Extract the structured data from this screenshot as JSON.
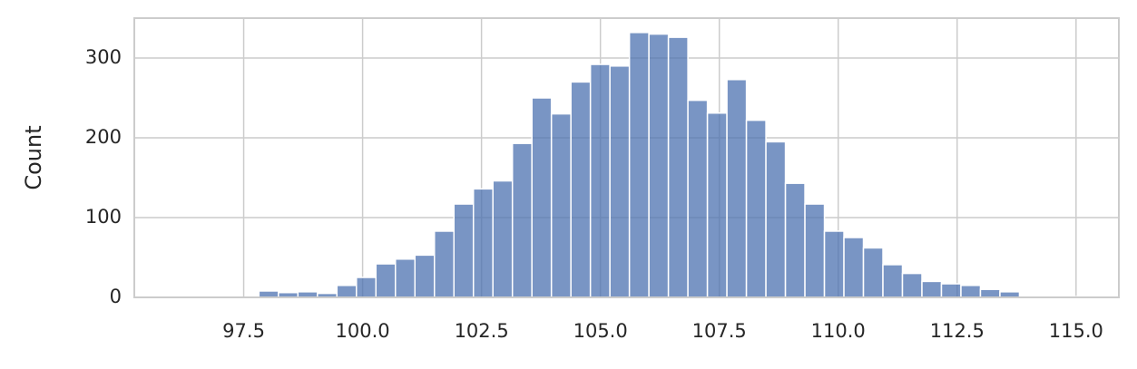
{
  "chart_data": {
    "type": "histogram",
    "ylabel": "Count",
    "bins": [
      96.18,
      96.59,
      97.0,
      97.41,
      97.82,
      98.23,
      98.64,
      99.05,
      99.46,
      99.87,
      100.28,
      100.69,
      101.1,
      101.51,
      101.92,
      102.33,
      102.74,
      103.15,
      103.56,
      103.97,
      104.38,
      104.79,
      105.2,
      105.61,
      106.02,
      106.43,
      106.84,
      107.25,
      107.66,
      108.07,
      108.48,
      108.89,
      109.3,
      109.71,
      110.12,
      110.53,
      110.94,
      111.35,
      111.76,
      112.17,
      112.58,
      112.99,
      113.4,
      113.81,
      114.22,
      114.63,
      115.04
    ],
    "values": [
      1,
      0,
      0,
      0,
      8,
      6,
      7,
      5,
      15,
      25,
      42,
      48,
      53,
      83,
      117,
      136,
      146,
      193,
      250,
      230,
      270,
      292,
      290,
      332,
      330,
      326,
      247,
      231,
      273,
      222,
      195,
      143,
      117,
      83,
      75,
      62,
      41,
      30,
      20,
      17,
      15,
      10,
      7,
      0,
      0,
      1
    ],
    "color": "#4c72b0",
    "xlim": [
      95.2,
      115.9
    ],
    "ylim": [
      0,
      350
    ],
    "xticks": [
      {
        "value": 97.5,
        "label": "97.5"
      },
      {
        "value": 100,
        "label": "100.0"
      },
      {
        "value": 102.5,
        "label": "102.5"
      },
      {
        "value": 105,
        "label": "105.0"
      },
      {
        "value": 107.5,
        "label": "107.5"
      },
      {
        "value": 110,
        "label": "110.0"
      },
      {
        "value": 112.5,
        "label": "112.5"
      },
      {
        "value": 115,
        "label": "115.0"
      }
    ],
    "yticks": [
      0,
      100,
      200,
      300
    ],
    "grid": true
  }
}
